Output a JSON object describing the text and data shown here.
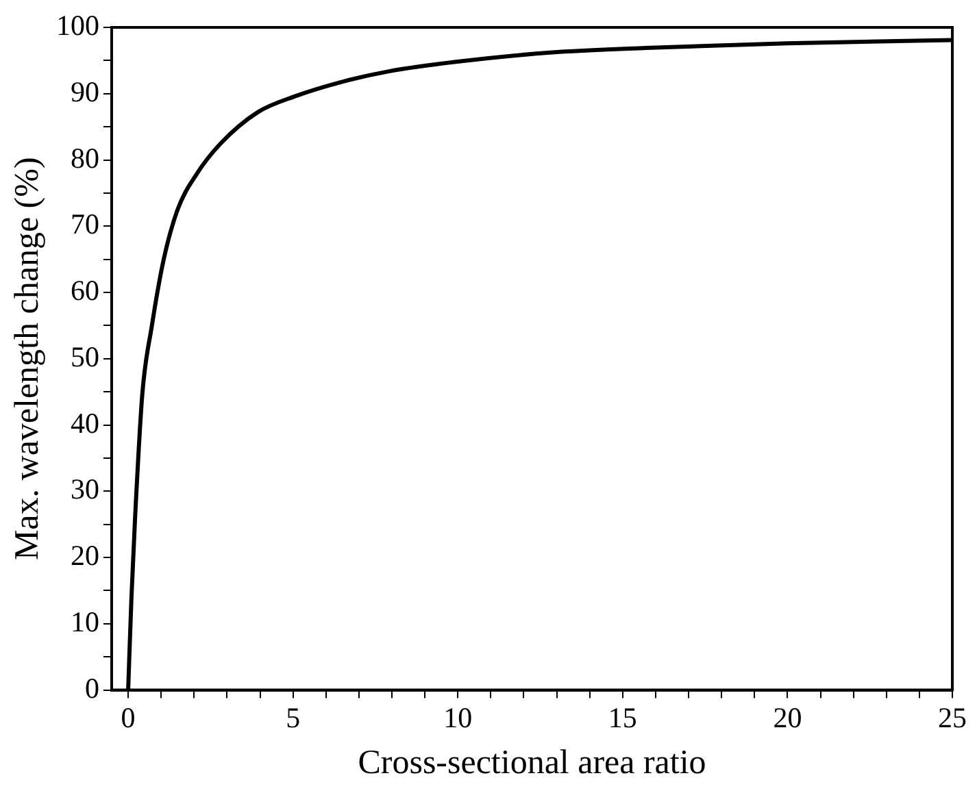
{
  "chart_data": {
    "type": "line",
    "xlabel": "Cross-sectional area ratio",
    "ylabel": "Max. wavelength change (%)",
    "x": [
      0,
      0.1,
      0.21,
      0.43,
      0.72,
      1.07,
      1.5,
      2.07,
      2.79,
      3.93,
      5.06,
      6.5,
      7.94,
      9.94,
      12.8,
      15.7,
      20,
      25
    ],
    "series": [
      {
        "color": "#000000",
        "values": [
          0,
          14,
          26,
          44.7,
          55,
          64.8,
          72.5,
          77.8,
          82.4,
          87.2,
          89.6,
          91.8,
          93.4,
          94.8,
          96.2,
          96.9,
          97.6,
          98.1
        ]
      }
    ],
    "xlim": [
      -0.5,
      25
    ],
    "xticks": [
      0,
      {
        "value": 1,
        "label": null
      },
      {
        "value": 2,
        "label": null
      },
      {
        "value": 3,
        "label": null
      },
      {
        "value": 4,
        "label": null
      },
      5,
      {
        "value": 6,
        "label": null
      },
      {
        "value": 7,
        "label": null
      },
      {
        "value": 8,
        "label": null
      },
      {
        "value": 9,
        "label": null
      },
      10,
      {
        "value": 11,
        "label": null
      },
      {
        "value": 12,
        "label": null
      },
      {
        "value": 13,
        "label": null
      },
      {
        "value": 14,
        "label": null
      },
      15,
      {
        "value": 16,
        "label": null
      },
      {
        "value": 17,
        "label": null
      },
      {
        "value": 18,
        "label": null
      },
      {
        "value": 19,
        "label": null
      },
      20,
      {
        "value": 21,
        "label": null
      },
      {
        "value": 22,
        "label": null
      },
      {
        "value": 23,
        "label": null
      },
      {
        "value": 24,
        "label": null
      },
      25
    ],
    "ylim": [
      0,
      100
    ],
    "yticks": [
      0,
      {
        "value": 5,
        "label": null
      },
      10,
      {
        "value": 15,
        "label": null
      },
      20,
      {
        "value": 25,
        "label": null
      },
      30,
      {
        "value": 35,
        "label": null
      },
      40,
      {
        "value": 45,
        "label": null
      },
      50,
      {
        "value": 55,
        "label": null
      },
      60,
      {
        "value": 65,
        "label": null
      },
      70,
      {
        "value": 75,
        "label": null
      },
      80,
      {
        "value": 85,
        "label": null
      },
      90,
      {
        "value": 95,
        "label": null
      },
      100
    ],
    "grid": false,
    "legend": false,
    "marker": "none",
    "line_style": "solid"
  }
}
